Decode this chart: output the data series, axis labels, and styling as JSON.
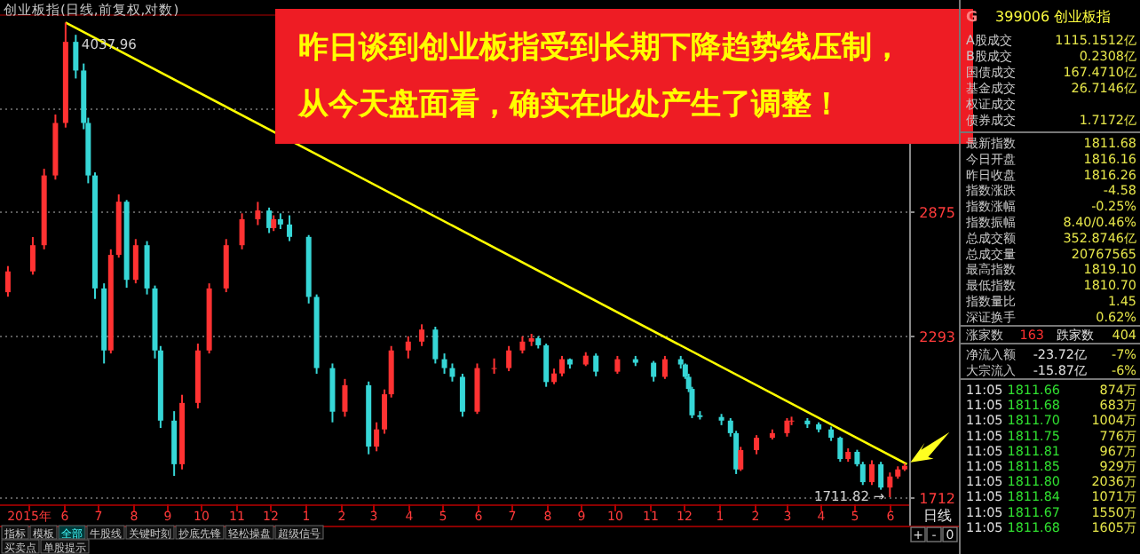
{
  "chart_data": [
    {
      "type": "candlestick",
      "title": "创业板指(日线,前复权,对数)",
      "log": true,
      "grid": "y",
      "xlim": [
        "2015-04-06",
        "2017-06-18"
      ],
      "xticks": [
        {
          "value": "2015-05-01",
          "label": "2015年"
        },
        {
          "value": "2015-06-01",
          "label": "6"
        },
        {
          "value": "2015-07-01",
          "label": "7"
        },
        {
          "value": "2015-08-01",
          "label": "8"
        },
        {
          "value": "2015-09-01",
          "label": "9"
        },
        {
          "value": "2015-10-01",
          "label": "10"
        },
        {
          "value": "2015-11-01",
          "label": "11"
        },
        {
          "value": "2015-12-01",
          "label": "12"
        },
        {
          "value": "2016-01-01",
          "label": "1"
        },
        {
          "value": "2016-02-01",
          "label": "2"
        },
        {
          "value": "2016-03-01",
          "label": "3"
        },
        {
          "value": "2016-04-01",
          "label": "4"
        },
        {
          "value": "2016-05-01",
          "label": "5"
        },
        {
          "value": "2016-06-01",
          "label": "6"
        },
        {
          "value": "2016-07-01",
          "label": "7"
        },
        {
          "value": "2016-08-01",
          "label": "8"
        },
        {
          "value": "2016-09-01",
          "label": "9"
        },
        {
          "value": "2016-10-01",
          "label": "10"
        },
        {
          "value": "2016-11-01",
          "label": "11"
        },
        {
          "value": "2016-12-01",
          "label": "12"
        },
        {
          "value": "2017-01-01",
          "label": "1"
        },
        {
          "value": "2017-02-01",
          "label": "2"
        },
        {
          "value": "2017-03-01",
          "label": "3"
        },
        {
          "value": "2017-04-01",
          "label": "4"
        },
        {
          "value": "2017-05-01",
          "label": "5"
        },
        {
          "value": "2017-06-01",
          "label": "6"
        }
      ],
      "ylim": [
        1690,
        4100
      ],
      "yticks": [
        {
          "value": 3456,
          "label": null
        },
        2875,
        2293,
        1712
      ],
      "x": [
        "2015-04-13",
        "2015-05-05",
        "2015-05-15",
        "2015-05-25",
        "2015-06-03",
        "2015-06-12",
        "2015-06-19",
        "2015-06-23",
        "2015-06-29",
        "2015-07-07",
        "2015-07-13",
        "2015-07-20",
        "2015-07-27",
        "2015-08-04",
        "2015-08-14",
        "2015-08-21",
        "2015-08-26",
        "2015-09-07",
        "2015-09-14",
        "2015-09-28",
        "2015-10-08",
        "2015-10-23",
        "2015-11-06",
        "2015-11-20",
        "2015-11-30",
        "2015-12-04",
        "2015-12-10",
        "2015-12-18",
        "2016-01-04",
        "2016-01-11",
        "2016-01-25",
        "2016-02-05",
        "2016-02-26",
        "2016-03-04",
        "2016-03-11",
        "2016-03-17",
        "2016-04-01",
        "2016-04-13",
        "2016-04-25",
        "2016-05-03",
        "2016-05-10",
        "2016-05-19",
        "2016-06-01",
        "2016-06-16",
        "2016-06-29",
        "2016-07-11",
        "2016-07-19",
        "2016-07-25",
        "2016-08-01",
        "2016-08-08",
        "2016-08-15",
        "2016-08-22",
        "2016-09-05",
        "2016-09-14",
        "2016-10-03",
        "2016-10-19",
        "2016-11-04",
        "2016-11-14",
        "2016-11-28",
        "2016-12-02",
        "2016-12-05",
        "2016-12-08",
        "2016-12-15",
        "2017-01-03",
        "2017-01-11",
        "2017-01-16",
        "2017-01-20",
        "2017-02-03",
        "2017-02-17",
        "2017-03-02",
        "2017-03-06",
        "2017-03-20",
        "2017-03-30",
        "2017-04-10",
        "2017-04-18",
        "2017-04-25",
        "2017-05-03",
        "2017-05-08",
        "2017-05-16",
        "2017-05-24",
        "2017-06-01",
        "2017-06-08",
        "2017-06-14"
      ],
      "ohlc": [
        [
          2480,
          2600,
          2460,
          2575
        ],
        [
          2575,
          2740,
          2560,
          2700
        ],
        [
          2700,
          3100,
          2680,
          3063
        ],
        [
          3063,
          3420,
          3040,
          3368
        ],
        [
          3368,
          4037.96,
          3340,
          3900
        ],
        [
          3900,
          3950,
          3650,
          3703
        ],
        [
          3703,
          3750,
          3330,
          3368
        ],
        [
          3368,
          3400,
          3020,
          3063
        ],
        [
          3063,
          3080,
          2450,
          2497
        ],
        [
          2497,
          2520,
          2180,
          2232
        ],
        [
          2232,
          2680,
          2220,
          2653
        ],
        [
          2653,
          2960,
          2640,
          2921
        ],
        [
          2921,
          2930,
          2500,
          2536
        ],
        [
          2536,
          2730,
          2520,
          2700
        ],
        [
          2700,
          2720,
          2470,
          2497
        ],
        [
          2497,
          2510,
          2200,
          2232
        ],
        [
          2232,
          2250,
          1940,
          1966
        ],
        [
          1966,
          2000,
          1779,
          1817
        ],
        [
          1817,
          2060,
          1800,
          2030
        ],
        [
          2030,
          2260,
          2010,
          2232
        ],
        [
          2232,
          2520,
          2220,
          2497
        ],
        [
          2497,
          2730,
          2480,
          2700
        ],
        [
          2700,
          2860,
          2680,
          2830
        ],
        [
          2830,
          2920,
          2800,
          2875
        ],
        [
          2875,
          2890,
          2760,
          2785
        ],
        [
          2785,
          2850,
          2770,
          2830
        ],
        [
          2830,
          2860,
          2780,
          2803
        ],
        [
          2803,
          2850,
          2720,
          2741
        ],
        [
          2741,
          2750,
          2430,
          2459
        ],
        [
          2459,
          2470,
          2140,
          2162
        ],
        [
          2162,
          2180,
          1960,
          1998
        ],
        [
          1998,
          2120,
          1980,
          2096
        ],
        [
          2096,
          2110,
          1850,
          1876
        ],
        [
          1876,
          1960,
          1860,
          1935
        ],
        [
          1935,
          2080,
          1920,
          2062
        ],
        [
          2062,
          2250,
          2050,
          2232
        ],
        [
          2232,
          2290,
          2200,
          2268
        ],
        [
          2268,
          2340,
          2250,
          2318
        ],
        [
          2318,
          2330,
          2180,
          2197
        ],
        [
          2197,
          2220,
          2140,
          2162
        ],
        [
          2162,
          2180,
          2110,
          2128
        ],
        [
          2128,
          2140,
          1980,
          1998
        ],
        [
          1998,
          2180,
          1990,
          2162
        ],
        [
          2162,
          2200,
          2140,
          2162
        ],
        [
          2162,
          2250,
          2150,
          2232
        ],
        [
          2232,
          2290,
          2220,
          2268
        ],
        [
          2268,
          2300,
          2250,
          2282
        ],
        [
          2282,
          2290,
          2240,
          2253
        ],
        [
          2253,
          2260,
          2090,
          2108
        ],
        [
          2108,
          2160,
          2100,
          2141
        ],
        [
          2141,
          2210,
          2130,
          2197
        ],
        [
          2197,
          2200,
          2160,
          2176
        ],
        [
          2176,
          2225,
          2170,
          2211
        ],
        [
          2211,
          2220,
          2130,
          2148
        ],
        [
          2148,
          2210,
          2140,
          2197
        ],
        [
          2197,
          2210,
          2170,
          2183
        ],
        [
          2183,
          2190,
          2110,
          2128
        ],
        [
          2128,
          2210,
          2120,
          2197
        ],
        [
          2197,
          2210,
          2160,
          2176
        ],
        [
          2176,
          2180,
          2120,
          2128
        ],
        [
          2128,
          2140,
          2070,
          2082
        ],
        [
          2082,
          2090,
          1975,
          1985
        ],
        [
          1985,
          2000,
          1970,
          1979
        ],
        [
          1979,
          1990,
          1950,
          1966
        ],
        [
          1966,
          1975,
          1910,
          1922
        ],
        [
          1922,
          1930,
          1785,
          1800
        ],
        [
          1800,
          1875,
          1795,
          1864
        ],
        [
          1864,
          1915,
          1850,
          1906
        ],
        [
          1906,
          1935,
          1900,
          1922
        ],
        [
          1922,
          1975,
          1910,
          1966
        ],
        [
          1966,
          1980,
          1950,
          1966
        ],
        [
          1966,
          1975,
          1940,
          1953
        ],
        [
          1953,
          1960,
          1925,
          1935
        ],
        [
          1935,
          1945,
          1895,
          1906
        ],
        [
          1906,
          1910,
          1825,
          1834
        ],
        [
          1834,
          1870,
          1825,
          1858
        ],
        [
          1858,
          1865,
          1810,
          1817
        ],
        [
          1817,
          1825,
          1750,
          1759
        ],
        [
          1759,
          1830,
          1750,
          1817
        ],
        [
          1817,
          1825,
          1735,
          1742
        ],
        [
          1742,
          1790,
          1711.82,
          1777
        ],
        [
          1777,
          1810,
          1770,
          1800
        ],
        [
          1800,
          1820,
          1795,
          1811.68
        ]
      ],
      "series": [
        {
          "type": "line",
          "x": [
            "2015-06-03",
            "2017-06-16"
          ],
          "values": [
            4037.96,
            1817
          ],
          "color": "#ffff00"
        }
      ],
      "annotations": [
        "昨日谈到创业板指受到长期下降趋势线压制，",
        "从今天盘面看，确实在此处产生了调整！",
        {
          "text": "4037.96",
          "x": "2015-06-03",
          "y": 4037.96
        },
        "1711.82 →",
        "指标",
        "模板",
        "全部",
        "牛股线",
        "关键时刻",
        "抄底先锋",
        "轻松操盘",
        "超级信号",
        "买卖点",
        "单股提示",
        "日线",
        "+",
        "-",
        "0"
      ]
    },
    {
      "type": "other",
      "annotations": [
        "G 399006 创业板指",
        "A股成交 1115.1512亿",
        "B股成交 0.2308亿",
        "国债成交 167.4710亿",
        "基金成交 26.7146亿",
        "权证成交",
        "债券成交 1.7172亿",
        "最新指数 1811.68",
        "今日开盘 1816.16",
        "昨日收盘 1816.26",
        "指数涨跌 -4.58",
        "指数涨幅 -0.25%",
        "指数振幅 8.40/0.46%",
        "总成交额 352.8746亿",
        "总成交量 20767565",
        "最高指数 1819.10",
        "最低指数 1810.70",
        "指数量比 1.45",
        "深证换手 0.62%",
        "涨家数 163 跌家数 404",
        "净流入额 -23.72亿 -7%",
        "大宗流入 -15.87亿 -6%",
        "11:05 1811.66 874万",
        "11:05 1811.68 683万",
        "11:05 1811.70 1004万",
        "11:05 1811.75 776万",
        "11:05 1811.81 967万",
        "11:05 1811.85 929万",
        "11:05 1811.80 2036万",
        "11:05 1811.84 1071万",
        "11:05 1811.67 1550万",
        "11:05 1811.68 1605万"
      ]
    }
  ]
}
